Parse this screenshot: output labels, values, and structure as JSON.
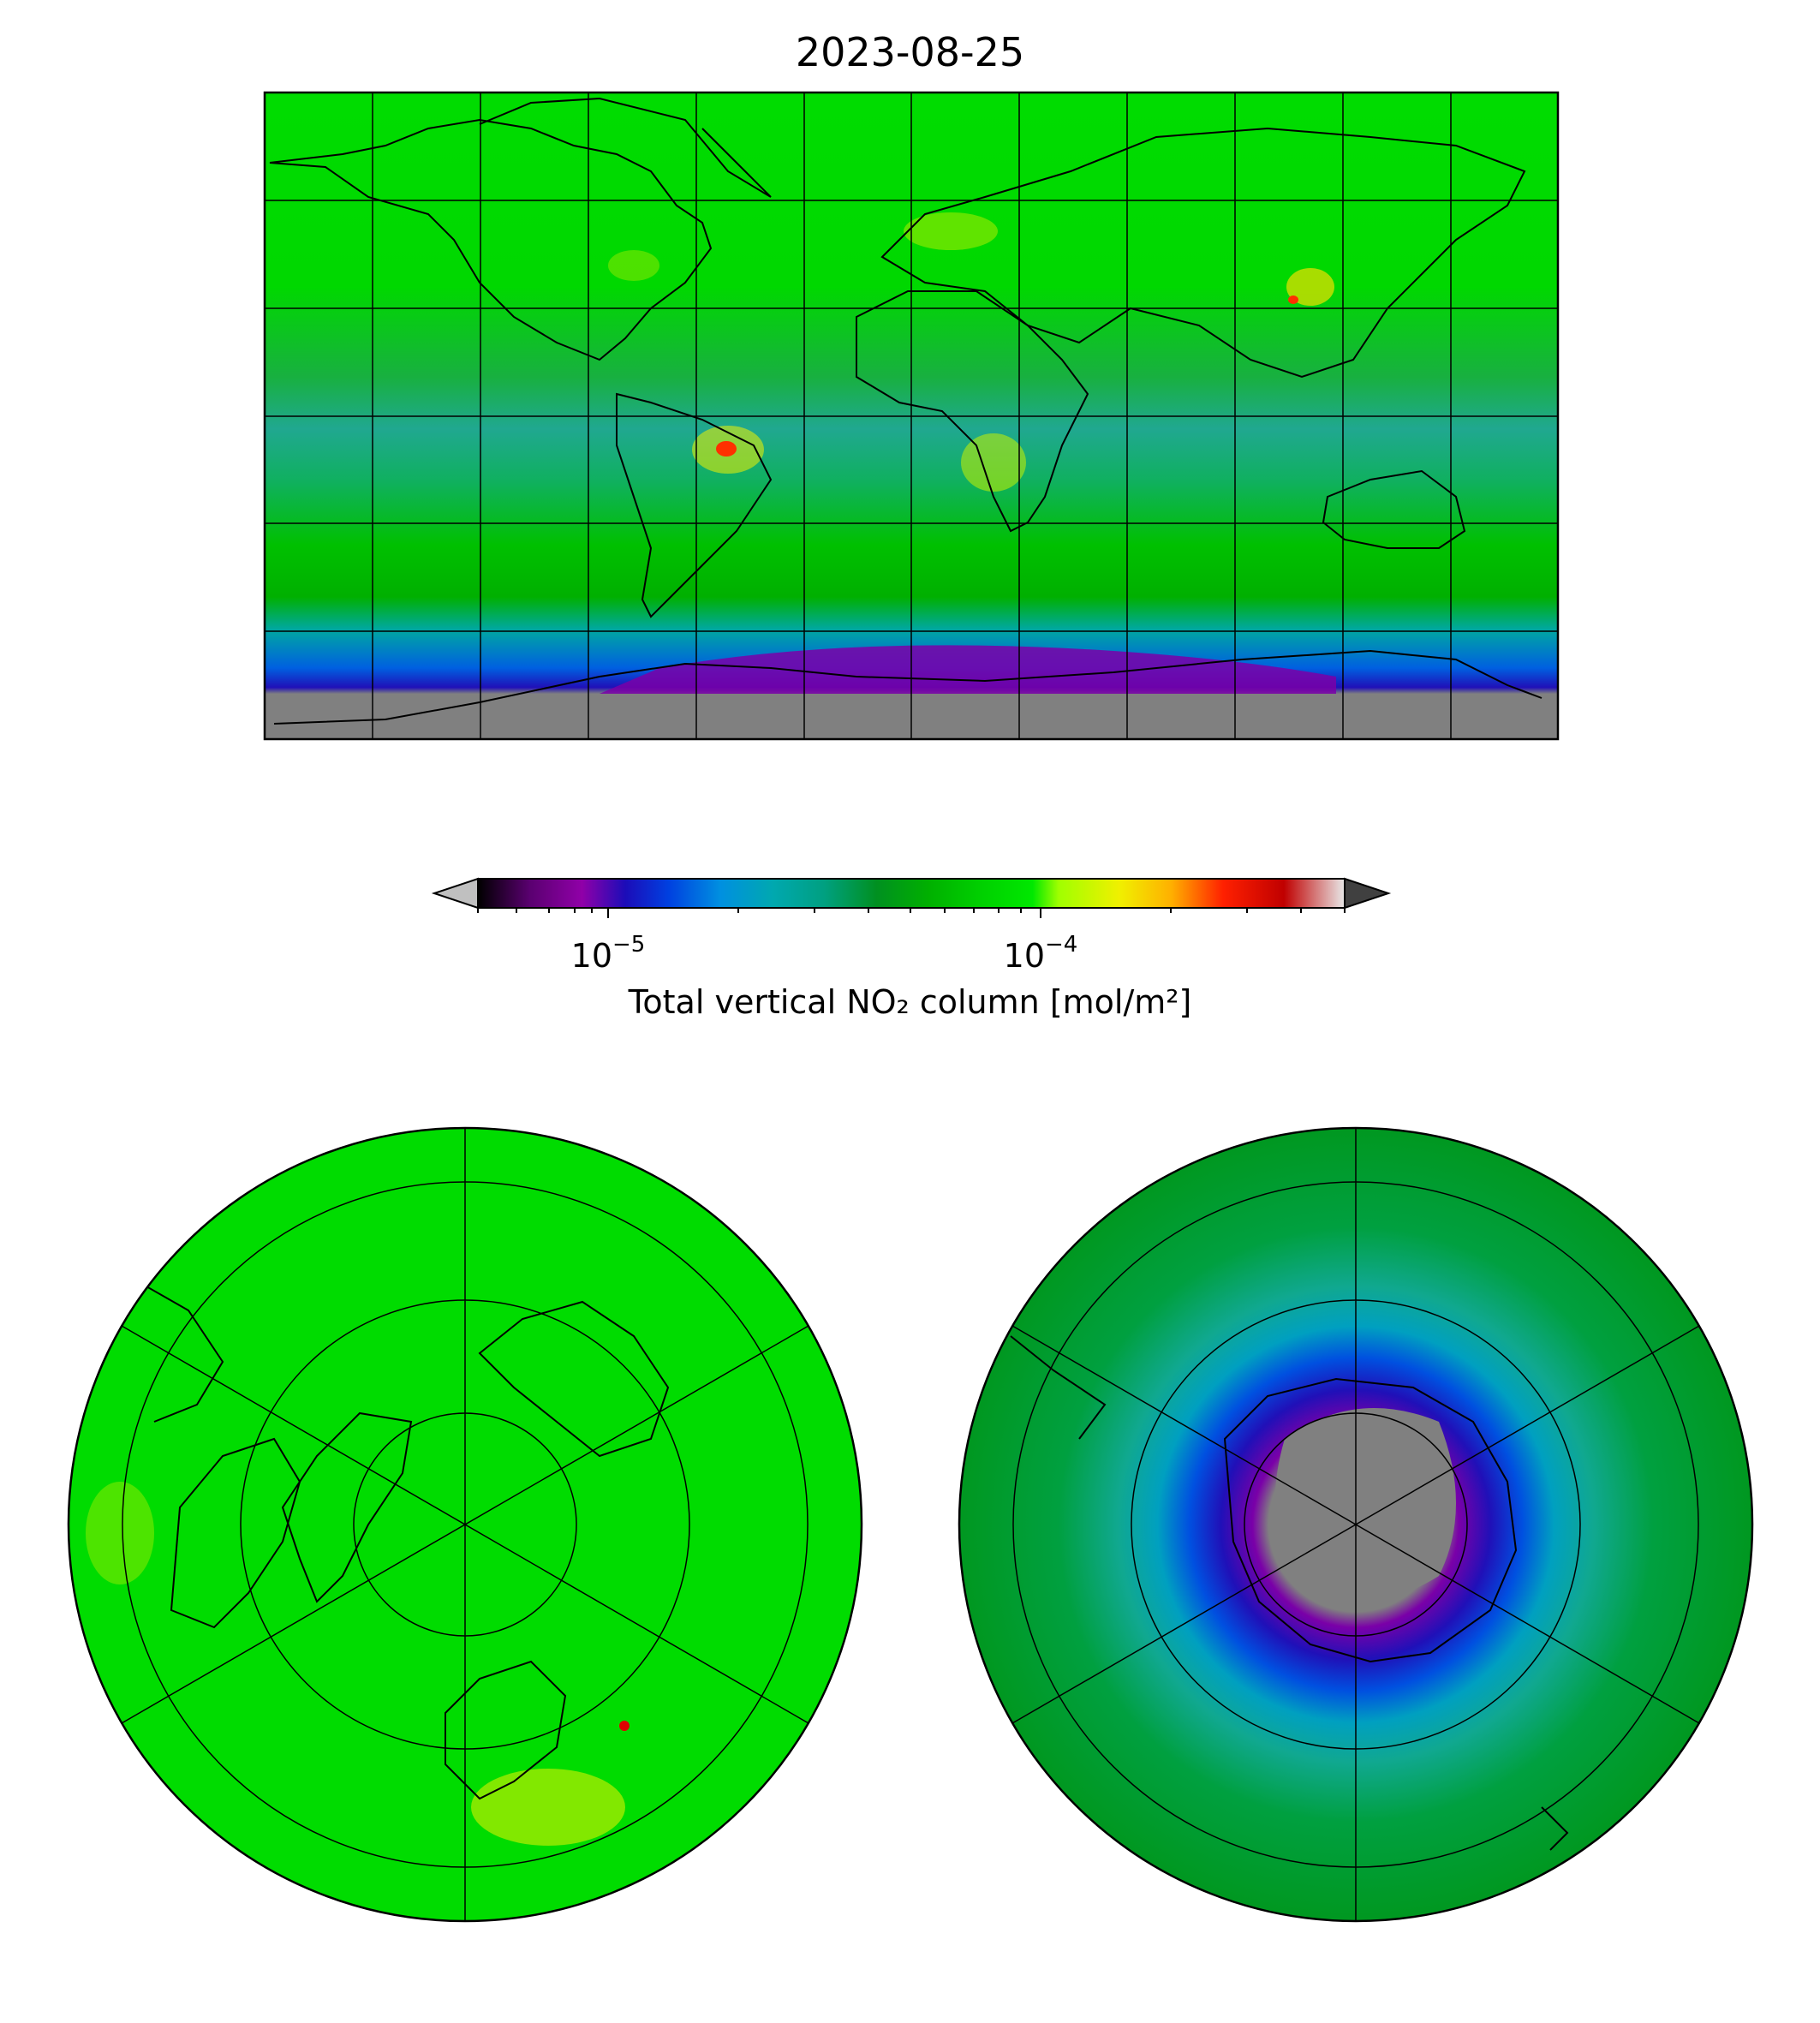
{
  "figure": {
    "title": "2023-08-25",
    "colorbar": {
      "label": "Total vertical NO₂ column [mol/m²]",
      "scale": "log",
      "range": [
        5e-06,
        0.0005
      ],
      "ticks": [
        {
          "base": "10",
          "exp": "−5",
          "value": 1e-05
        },
        {
          "base": "10",
          "exp": "−4",
          "value": 0.0001
        }
      ],
      "colors": [
        "#000000",
        "#5a0070",
        "#9000a8",
        "#1c0cb8",
        "#0040e0",
        "#0090e0",
        "#00a8b0",
        "#00a080",
        "#009020",
        "#00c800",
        "#00e800",
        "#a0ff00",
        "#f0f000",
        "#ffb000",
        "#ff3000",
        "#e00000",
        "#c00000",
        "#e0e0e0"
      ],
      "under_color": "#c0c0c0",
      "over_color": "#404040"
    },
    "panels": [
      {
        "name": "global-map",
        "projection": "PlateCarree",
        "gridlines": {
          "lon_step_deg": 30,
          "lat_step_deg": 30
        }
      },
      {
        "name": "north-polar-map",
        "projection": "NorthPolarStereo",
        "gridlines": {
          "lat_rings": 4,
          "meridians": 6
        }
      },
      {
        "name": "south-polar-map",
        "projection": "SouthPolarStereo",
        "gridlines": {
          "lat_rings": 4,
          "meridians": 6
        }
      }
    ],
    "no_data_color": "#808080"
  }
}
